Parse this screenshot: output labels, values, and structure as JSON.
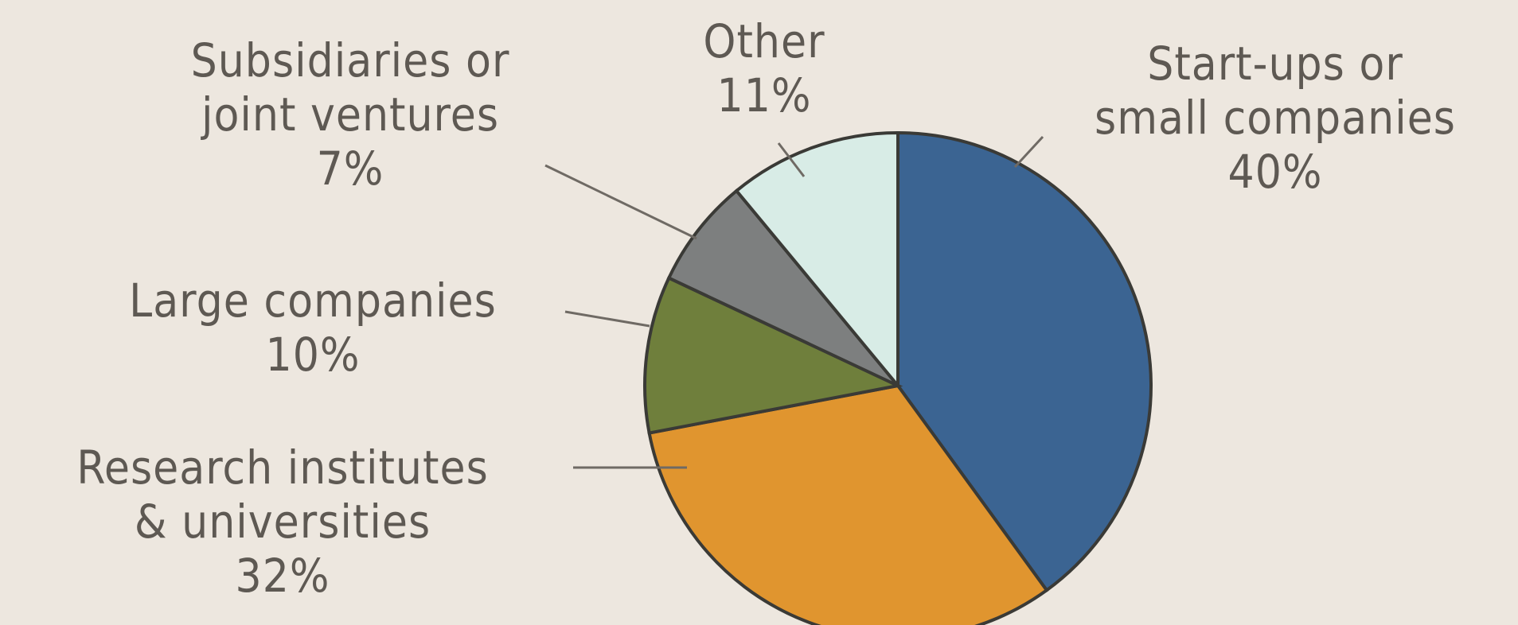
{
  "chart_data": {
    "type": "pie",
    "title": "",
    "slices": [
      {
        "label_lines": [
          "Start-ups or",
          "small companies"
        ],
        "value": 40,
        "value_label": "40%",
        "color": "#3b6492"
      },
      {
        "label_lines": [
          "Research institutes",
          "& universities"
        ],
        "value": 32,
        "value_label": "32%",
        "color": "#e0952f"
      },
      {
        "label_lines": [
          "Large companies"
        ],
        "value": 10,
        "value_label": "10%",
        "color": "#6f7f3c"
      },
      {
        "label_lines": [
          "Subsidiaries or",
          "joint ventures"
        ],
        "value": 7,
        "value_label": "7%",
        "color": "#7d7f7f"
      },
      {
        "label_lines": [
          "Other"
        ],
        "value": 11,
        "value_label": "11%",
        "color": "#d8ece6"
      }
    ],
    "start_angle_deg": 0,
    "direction": "clockwise",
    "legend": "none"
  }
}
